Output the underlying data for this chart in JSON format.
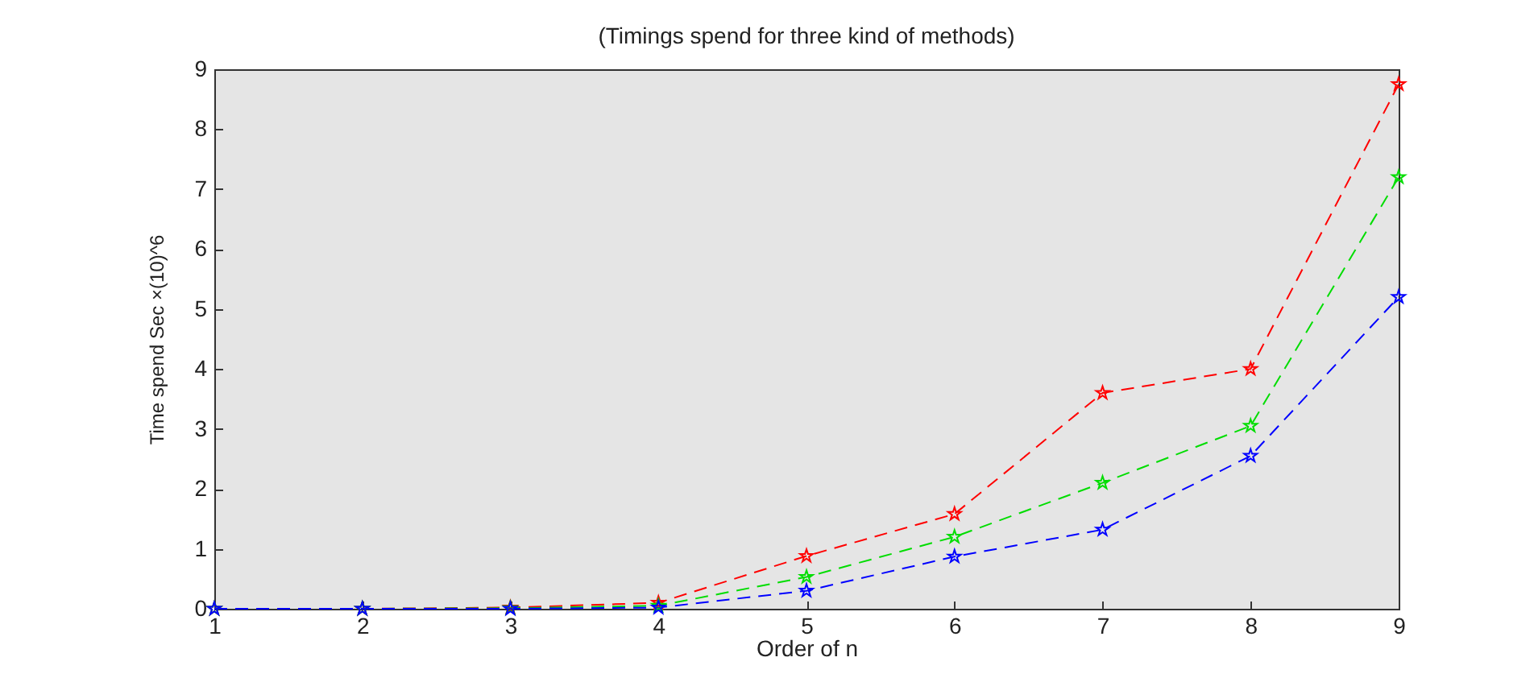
{
  "chart_data": {
    "type": "line",
    "title": "(Timings spend for three kind of methods)",
    "xlabel": "Order of n",
    "ylabel": "Time spend Sec ×(10)^6",
    "x": [
      1,
      2,
      3,
      4,
      5,
      6,
      7,
      8,
      9
    ],
    "series": [
      {
        "color": "#ff0000",
        "values": [
          0,
          0,
          0.02,
          0.1,
          0.88,
          1.58,
          3.6,
          4.0,
          8.75
        ]
      },
      {
        "color": "#00dd00",
        "values": [
          0,
          0,
          0.01,
          0.05,
          0.53,
          1.2,
          2.1,
          3.05,
          7.2
        ]
      },
      {
        "color": "#0000ff",
        "values": [
          0,
          0,
          0,
          0.02,
          0.3,
          0.87,
          1.32,
          2.55,
          5.2
        ]
      }
    ],
    "xlim": [
      1,
      9
    ],
    "xticks": [
      1,
      2,
      3,
      4,
      5,
      6,
      7,
      8,
      9
    ],
    "ylim": [
      0,
      9
    ],
    "yticks": [
      0,
      1,
      2,
      3,
      4,
      5,
      6,
      7,
      8,
      9
    ],
    "grid": false,
    "legend": false,
    "marker": "star",
    "line_style": "dashed"
  }
}
